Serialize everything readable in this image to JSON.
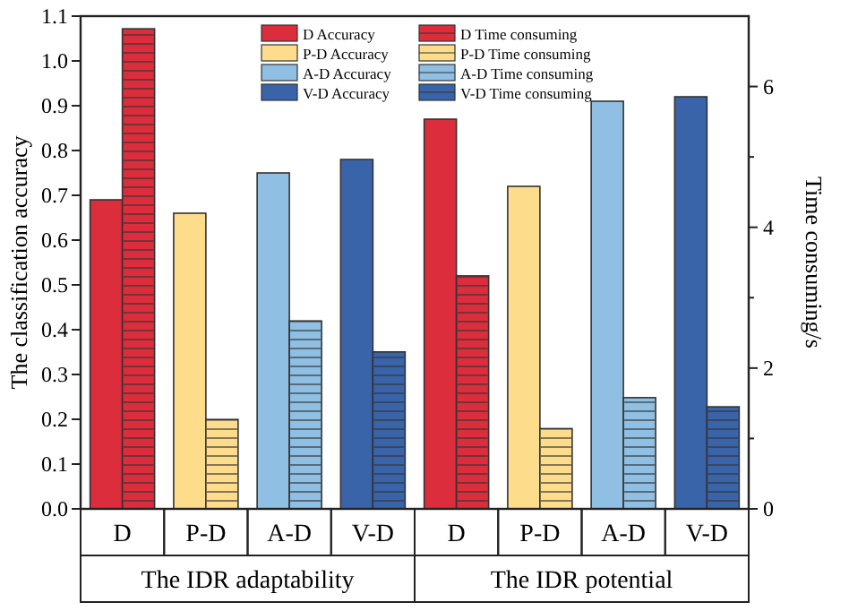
{
  "chart_data": {
    "type": "bar",
    "ylabel": "The classification accuracy",
    "y2label": "Time consuming/s",
    "categories": [
      "D",
      "P-D",
      "A-D",
      "V-D",
      "D",
      "P-D",
      "A-D",
      "V-D"
    ],
    "annotations": [
      "The IDR adaptability",
      "The IDR potential"
    ],
    "series": [
      {
        "name": "D Accuracy",
        "color": "#db2d3c",
        "values": [
          0.69,
          null,
          null,
          null,
          0.87,
          null,
          null,
          null
        ]
      },
      {
        "name": "P-D Accuracy",
        "color": "#fddc8c",
        "values": [
          null,
          0.66,
          null,
          null,
          null,
          0.72,
          null,
          null
        ]
      },
      {
        "name": "A-D Accuracy",
        "color": "#8fbfe3",
        "values": [
          null,
          null,
          0.75,
          null,
          null,
          null,
          0.91,
          null
        ]
      },
      {
        "name": "V-D Accuracy",
        "color": "#3a64aa",
        "values": [
          null,
          null,
          null,
          0.78,
          null,
          null,
          null,
          0.92
        ]
      },
      {
        "name": "D Time consuming",
        "color": "#db2d3c",
        "axis": "y2",
        "values": [
          6.82,
          null,
          null,
          null,
          3.31,
          null,
          null,
          null
        ]
      },
      {
        "name": "P-D Time consuming",
        "color": "#fddc8c",
        "axis": "y2",
        "values": [
          null,
          1.27,
          null,
          null,
          null,
          1.14,
          null,
          null
        ]
      },
      {
        "name": "A-D Time consuming",
        "color": "#8fbfe3",
        "axis": "y2",
        "values": [
          null,
          null,
          2.67,
          null,
          null,
          null,
          1.58,
          null
        ]
      },
      {
        "name": "V-D Time consuming",
        "color": "#3a64aa",
        "axis": "y2",
        "values": [
          null,
          null,
          null,
          2.23,
          null,
          null,
          null,
          1.45
        ]
      }
    ],
    "ylim": [
      0,
      1.1
    ],
    "yticks": [
      {
        "value": 0,
        "label": "0.0"
      },
      0.1,
      0.2,
      0.3,
      0.4,
      0.5,
      0.6,
      0.7,
      0.8,
      0.9,
      {
        "value": 1,
        "label": "1.0"
      },
      1.1
    ],
    "y2lim": [
      0,
      7
    ],
    "y2ticks": [
      0,
      {
        "value": 1,
        "label": null
      },
      2,
      {
        "value": 3,
        "label": null
      },
      4,
      {
        "value": 5,
        "label": null
      },
      6
    ],
    "legend": "top",
    "grid": false
  }
}
